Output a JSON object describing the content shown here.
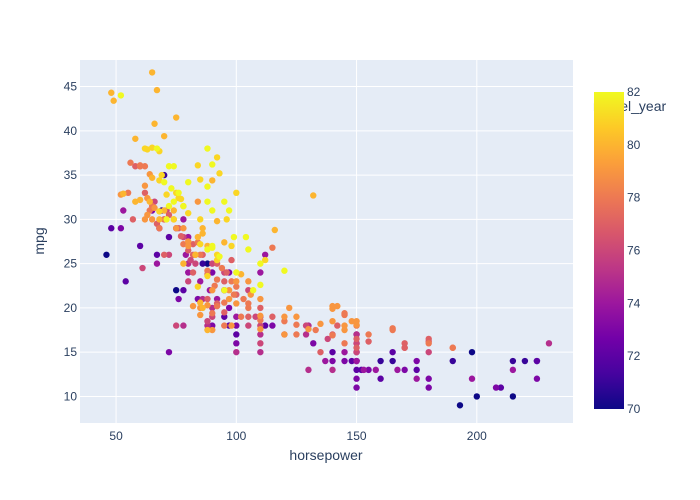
{
  "chart_data": {
    "type": "scatter",
    "title": "",
    "xlabel": "horsepower",
    "ylabel": "mpg",
    "xlim": [
      35,
      240
    ],
    "ylim": [
      7,
      48
    ],
    "xticks": [
      50,
      100,
      150,
      200
    ],
    "yticks": [
      10,
      15,
      20,
      25,
      30,
      35,
      40,
      45
    ],
    "grid": true,
    "plot_bg": "#E5ECF6",
    "colorbar": {
      "title": "model_year",
      "min": 70,
      "max": 82,
      "ticks": [
        70,
        72,
        74,
        76,
        78,
        80,
        82
      ],
      "colorscale": [
        "#0d0887",
        "#46039f",
        "#7201a8",
        "#9c179e",
        "#bd3786",
        "#d8576b",
        "#ed7953",
        "#fb9f3a",
        "#fdca26",
        "#f0f921"
      ]
    },
    "points": [
      [
        49,
        43.4,
        80
      ],
      [
        48,
        44.3,
        80
      ],
      [
        52,
        44,
        82
      ],
      [
        65,
        46.6,
        80
      ],
      [
        67,
        44.6,
        80
      ],
      [
        66,
        40.8,
        80
      ],
      [
        75,
        41.5,
        80
      ],
      [
        58,
        39.1,
        80
      ],
      [
        62,
        38,
        81
      ],
      [
        63,
        37.9,
        81
      ],
      [
        68,
        37.7,
        81
      ],
      [
        70,
        39.4,
        80
      ],
      [
        65,
        38.1,
        81
      ],
      [
        67,
        38,
        82
      ],
      [
        72,
        36,
        82
      ],
      [
        74,
        36,
        82
      ],
      [
        88,
        38,
        82
      ],
      [
        90,
        36.2,
        82
      ],
      [
        92,
        37,
        81
      ],
      [
        93,
        35.2,
        81
      ],
      [
        84,
        36.1,
        81
      ],
      [
        64,
        35.1,
        79
      ],
      [
        60,
        36.1,
        78
      ],
      [
        62,
        36,
        78
      ],
      [
        65,
        34.7,
        80
      ],
      [
        68,
        34.4,
        81
      ],
      [
        70,
        34.2,
        82
      ],
      [
        69,
        35,
        81
      ],
      [
        71,
        32.8,
        81
      ],
      [
        73,
        33.5,
        82
      ],
      [
        75,
        33,
        81
      ],
      [
        76,
        32.4,
        81
      ],
      [
        78,
        31.5,
        80
      ],
      [
        80,
        30.7,
        81
      ],
      [
        85,
        30,
        81
      ],
      [
        88,
        32,
        82
      ],
      [
        90,
        31,
        82
      ],
      [
        92,
        29.8,
        80
      ],
      [
        95,
        32,
        82
      ],
      [
        97,
        31,
        82
      ],
      [
        100,
        33,
        81
      ],
      [
        96,
        30,
        81
      ],
      [
        99,
        28,
        82
      ],
      [
        63,
        30.5,
        79
      ],
      [
        65,
        31.5,
        78
      ],
      [
        67,
        29.5,
        77
      ],
      [
        70,
        30,
        75
      ],
      [
        71,
        31,
        76
      ],
      [
        75,
        29,
        79
      ],
      [
        78,
        28,
        76
      ],
      [
        80,
        27.5,
        79
      ],
      [
        83,
        26,
        80
      ],
      [
        85,
        27.2,
        81
      ],
      [
        86,
        28.4,
        80
      ],
      [
        88,
        26.6,
        82
      ],
      [
        90,
        26.8,
        82
      ],
      [
        92,
        25.4,
        81
      ],
      [
        95,
        27.4,
        80
      ],
      [
        98,
        27,
        81
      ],
      [
        100,
        24,
        82
      ],
      [
        104,
        28,
        82
      ],
      [
        105,
        26.6,
        82
      ],
      [
        110,
        25,
        82
      ],
      [
        112,
        25.4,
        81
      ],
      [
        115,
        26.8,
        78
      ],
      [
        116,
        28.8,
        80
      ],
      [
        120,
        24.2,
        82
      ],
      [
        132,
        32.7,
        80
      ],
      [
        110,
        22.6,
        82
      ],
      [
        107,
        22,
        82
      ],
      [
        95,
        22,
        82
      ],
      [
        84,
        22.4,
        81
      ],
      [
        88,
        23.6,
        81
      ],
      [
        92,
        23.2,
        78
      ],
      [
        98,
        25.4,
        77
      ],
      [
        102,
        23.8,
        80
      ],
      [
        46,
        26,
        70
      ],
      [
        48,
        29,
        72
      ],
      [
        52,
        29,
        73
      ],
      [
        53,
        31,
        74
      ],
      [
        54,
        23,
        72
      ],
      [
        60,
        27,
        72
      ],
      [
        61,
        24.5,
        76
      ],
      [
        65,
        31,
        73
      ],
      [
        67,
        26,
        72
      ],
      [
        69,
        31,
        71
      ],
      [
        70,
        35,
        71
      ],
      [
        72,
        28,
        72
      ],
      [
        75,
        22,
        70
      ],
      [
        76,
        21,
        73
      ],
      [
        78,
        22,
        72
      ],
      [
        79,
        26,
        74
      ],
      [
        80,
        25,
        75
      ],
      [
        80,
        23,
        76
      ],
      [
        82,
        24,
        77
      ],
      [
        83,
        26,
        78
      ],
      [
        85,
        23,
        74
      ],
      [
        86,
        25,
        71
      ],
      [
        88,
        25,
        70
      ],
      [
        89,
        22,
        74
      ],
      [
        90,
        24,
        73
      ],
      [
        90,
        20,
        75
      ],
      [
        92,
        21,
        74
      ],
      [
        95,
        22,
        73
      ],
      [
        95,
        19,
        72
      ],
      [
        97,
        20,
        73
      ],
      [
        97,
        18,
        72
      ],
      [
        100,
        18,
        73
      ],
      [
        100,
        19,
        74
      ],
      [
        100,
        17,
        72
      ],
      [
        100,
        16,
        73
      ],
      [
        100,
        15,
        75
      ],
      [
        105,
        18,
        76
      ],
      [
        105,
        19,
        77
      ],
      [
        110,
        18,
        76
      ],
      [
        110,
        19,
        74
      ],
      [
        110,
        21,
        79
      ],
      [
        110,
        20,
        77
      ],
      [
        110,
        24,
        74
      ],
      [
        110,
        17,
        75
      ],
      [
        112,
        18,
        72
      ],
      [
        115,
        18,
        73
      ],
      [
        120,
        19,
        79
      ],
      [
        120,
        17,
        76
      ],
      [
        122,
        20,
        79
      ],
      [
        125,
        17,
        78
      ],
      [
        125,
        19,
        79
      ],
      [
        129,
        18,
        76
      ],
      [
        130,
        18,
        75
      ],
      [
        130,
        13,
        75
      ],
      [
        132,
        16,
        73
      ],
      [
        135,
        15,
        77
      ],
      [
        137,
        14,
        74
      ],
      [
        140,
        13,
        75
      ],
      [
        140,
        17,
        77
      ],
      [
        140,
        14,
        73
      ],
      [
        140,
        15,
        72
      ],
      [
        145,
        14,
        73
      ],
      [
        145,
        15,
        74
      ],
      [
        145,
        16,
        78
      ],
      [
        145,
        17.5,
        79
      ],
      [
        145,
        18,
        79
      ],
      [
        148,
        14,
        72
      ],
      [
        150,
        15,
        73
      ],
      [
        150,
        13,
        72
      ],
      [
        150,
        14,
        72
      ],
      [
        150,
        16,
        74
      ],
      [
        150,
        14,
        73
      ],
      [
        150,
        15,
        76
      ],
      [
        150,
        15.5,
        77
      ],
      [
        150,
        17,
        75
      ],
      [
        150,
        18,
        78
      ],
      [
        150,
        17,
        74
      ],
      [
        150,
        18.5,
        79
      ],
      [
        150,
        11,
        73
      ],
      [
        150,
        12,
        73
      ],
      [
        150,
        14,
        74
      ],
      [
        152,
        13,
        72
      ],
      [
        153,
        13,
        74
      ],
      [
        155,
        13,
        73
      ],
      [
        155,
        17,
        78
      ],
      [
        158,
        13,
        74
      ],
      [
        160,
        14,
        71
      ],
      [
        160,
        12,
        72
      ],
      [
        165,
        14,
        71
      ],
      [
        165,
        17.5,
        78
      ],
      [
        165,
        15,
        72
      ],
      [
        167,
        13,
        74
      ],
      [
        170,
        16,
        77
      ],
      [
        170,
        15.5,
        77
      ],
      [
        170,
        13,
        73
      ],
      [
        175,
        14,
        73
      ],
      [
        175,
        13,
        72
      ],
      [
        175,
        12,
        74
      ],
      [
        180,
        12,
        73
      ],
      [
        180,
        11,
        73
      ],
      [
        180,
        15,
        76
      ],
      [
        180,
        16.5,
        77
      ],
      [
        180,
        16,
        78
      ],
      [
        190,
        15.5,
        78
      ],
      [
        190,
        14,
        71
      ],
      [
        193,
        9,
        70
      ],
      [
        198,
        12,
        74
      ],
      [
        198,
        15,
        70
      ],
      [
        200,
        10,
        70
      ],
      [
        208,
        11,
        73
      ],
      [
        210,
        11,
        72
      ],
      [
        215,
        14,
        71
      ],
      [
        215,
        13,
        74
      ],
      [
        215,
        10,
        70
      ],
      [
        220,
        14,
        71
      ],
      [
        225,
        14,
        71
      ],
      [
        225,
        14,
        72
      ],
      [
        225,
        12,
        73
      ],
      [
        230,
        16,
        75
      ],
      [
        97,
        24,
        73
      ],
      [
        95,
        24,
        76
      ],
      [
        95,
        23,
        77
      ],
      [
        100,
        23,
        79
      ],
      [
        105,
        22,
        76
      ],
      [
        98,
        23,
        78
      ],
      [
        90,
        25,
        76
      ],
      [
        88,
        23.8,
        77
      ],
      [
        85,
        26,
        78
      ],
      [
        83,
        25,
        76
      ],
      [
        82,
        26,
        77
      ],
      [
        80,
        28,
        74
      ],
      [
        78,
        30,
        74
      ],
      [
        75,
        29,
        73
      ],
      [
        72,
        26,
        76
      ],
      [
        70,
        26,
        77
      ],
      [
        68,
        29,
        74
      ],
      [
        67,
        25,
        74
      ],
      [
        78,
        25,
        80
      ],
      [
        80,
        27,
        79
      ],
      [
        84,
        28,
        80
      ],
      [
        86,
        29,
        80
      ],
      [
        88,
        27,
        80
      ],
      [
        90,
        27,
        82
      ],
      [
        92,
        26,
        81
      ],
      [
        93,
        25.8,
        82
      ],
      [
        90,
        34.4,
        80
      ],
      [
        88,
        33.7,
        82
      ],
      [
        85,
        34.5,
        81
      ],
      [
        84,
        32,
        79
      ],
      [
        80,
        34.2,
        82
      ],
      [
        78,
        31.5,
        82
      ],
      [
        77,
        32.3,
        81
      ],
      [
        76,
        33,
        82
      ],
      [
        74,
        32,
        82
      ],
      [
        72,
        31.5,
        82
      ],
      [
        70,
        31,
        80
      ],
      [
        68,
        30.9,
        81
      ],
      [
        66,
        31.3,
        79
      ],
      [
        64,
        32,
        80
      ],
      [
        63,
        32.4,
        79
      ],
      [
        62,
        33.8,
        79
      ],
      [
        60,
        32.2,
        80
      ],
      [
        58,
        32,
        80
      ],
      [
        56,
        36.4,
        78
      ],
      [
        60,
        36,
        78
      ],
      [
        52,
        32.8,
        79
      ],
      [
        53,
        32.9,
        80
      ],
      [
        62,
        30,
        79
      ],
      [
        65,
        30,
        79
      ],
      [
        68,
        30,
        80
      ],
      [
        71,
        30,
        82
      ],
      [
        74,
        30,
        81
      ],
      [
        74,
        31,
        80
      ],
      [
        78,
        29,
        79
      ],
      [
        80,
        24,
        74
      ],
      [
        84,
        21,
        73
      ],
      [
        86,
        21,
        75
      ],
      [
        88,
        21,
        77
      ],
      [
        88,
        18,
        75
      ],
      [
        90,
        19,
        76
      ],
      [
        90,
        18,
        73
      ],
      [
        92,
        20.5,
        77
      ],
      [
        95,
        19.5,
        77
      ],
      [
        98,
        18,
        79
      ],
      [
        99,
        21.5,
        78
      ],
      [
        100,
        20.5,
        79
      ],
      [
        102,
        19,
        78
      ],
      [
        105,
        20.5,
        78
      ],
      [
        106,
        21.5,
        79
      ],
      [
        108,
        19,
        76
      ],
      [
        110,
        16,
        76
      ],
      [
        110,
        15,
        75
      ],
      [
        95,
        18,
        78
      ],
      [
        85,
        20,
        79
      ],
      [
        86,
        20,
        80
      ],
      [
        88,
        18.5,
        76
      ],
      [
        90,
        17.5,
        79
      ],
      [
        88,
        17.5,
        80
      ],
      [
        78,
        18,
        75
      ],
      [
        75,
        18,
        76
      ],
      [
        72,
        15,
        73
      ],
      [
        82,
        20.2,
        79
      ],
      [
        85,
        19.2,
        79
      ],
      [
        85,
        20.6,
        80
      ],
      [
        88,
        20.3,
        79
      ],
      [
        90,
        19.4,
        78
      ],
      [
        92,
        20.2,
        78
      ],
      [
        95,
        20.6,
        78
      ],
      [
        97,
        21,
        79
      ],
      [
        100,
        21.5,
        77
      ],
      [
        103,
        21,
        78
      ],
      [
        105,
        20,
        78
      ],
      [
        110,
        19.1,
        79
      ],
      [
        110,
        18.6,
        78
      ],
      [
        110,
        17.6,
        79
      ],
      [
        115,
        19,
        77
      ],
      [
        120,
        17,
        79
      ],
      [
        120,
        18.5,
        78
      ],
      [
        125,
        18.1,
        78
      ],
      [
        129,
        17,
        75
      ],
      [
        130,
        17.6,
        79
      ],
      [
        133,
        17.5,
        78
      ],
      [
        135,
        18.2,
        79
      ],
      [
        138,
        16.5,
        76
      ],
      [
        140,
        16.9,
        78
      ],
      [
        140,
        18.5,
        79
      ],
      [
        142,
        18,
        77
      ],
      [
        145,
        19.2,
        78
      ],
      [
        148,
        18.5,
        79
      ],
      [
        150,
        16.5,
        77
      ],
      [
        150,
        16,
        76
      ],
      [
        155,
        16.2,
        77
      ],
      [
        165,
        17.7,
        78
      ],
      [
        170,
        15.5,
        77
      ],
      [
        180,
        16.2,
        77
      ],
      [
        190,
        15.5,
        78
      ],
      [
        140,
        19.9,
        79
      ],
      [
        140,
        20.2,
        79
      ],
      [
        142,
        20.2,
        79
      ],
      [
        145,
        19.4,
        78
      ],
      [
        150,
        18.1,
        79
      ],
      [
        105,
        23,
        79
      ],
      [
        100,
        22.4,
        78
      ],
      [
        97,
        22,
        79
      ],
      [
        96,
        24,
        77
      ],
      [
        94,
        24.5,
        78
      ],
      [
        92,
        25,
        77
      ],
      [
        91,
        22.5,
        78
      ],
      [
        90,
        22,
        79
      ],
      [
        88,
        24.2,
        78
      ],
      [
        86,
        26,
        77
      ],
      [
        84,
        27.4,
        78
      ],
      [
        82,
        27.2,
        77
      ],
      [
        81,
        25.4,
        76
      ],
      [
        80,
        26.5,
        77
      ],
      [
        78,
        27.2,
        78
      ],
      [
        77,
        28.1,
        77
      ],
      [
        76,
        29,
        77
      ],
      [
        74,
        30,
        78
      ],
      [
        72,
        30.5,
        77
      ],
      [
        70,
        30,
        78
      ],
      [
        68,
        29,
        78
      ],
      [
        66,
        32,
        76
      ],
      [
        64,
        31,
        78
      ],
      [
        62,
        33,
        77
      ],
      [
        60,
        36,
        77
      ],
      [
        58,
        36,
        77
      ],
      [
        57,
        30,
        77
      ],
      [
        55,
        33,
        78
      ],
      [
        112,
        26,
        74
      ]
    ]
  }
}
